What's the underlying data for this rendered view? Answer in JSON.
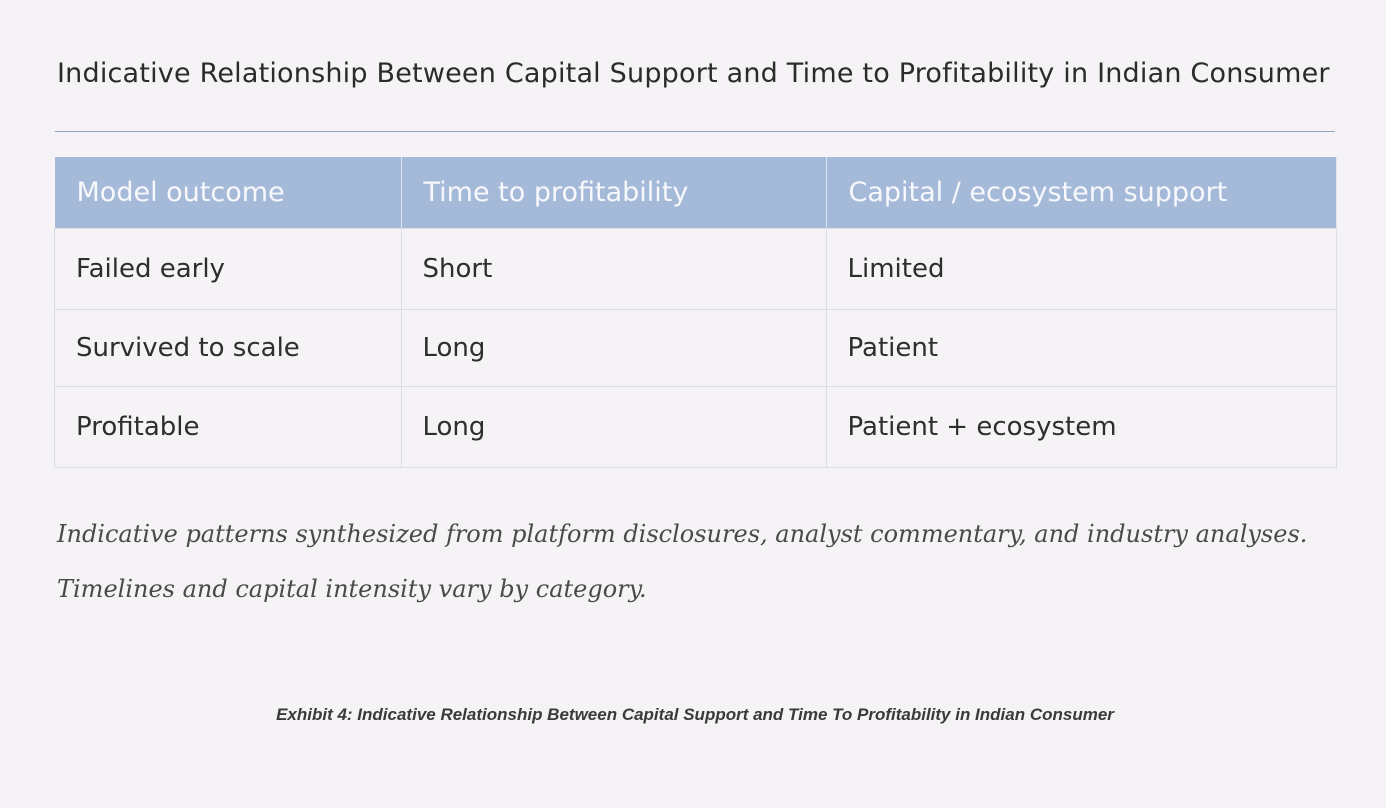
{
  "title": "Indicative Relationship Between Capital Support and Time to Profitability in Indian Consumer",
  "table": {
    "headers": [
      "Model outcome",
      "Time to profitability",
      "Capital / ecosystem support"
    ],
    "rows": [
      [
        "Failed early",
        "Short",
        "Limited"
      ],
      [
        "Survived to scale",
        "Long",
        "Patient"
      ],
      [
        "Profitable",
        "Long",
        "Patient + ecosystem"
      ]
    ]
  },
  "notes": [
    "Indicative patterns synthesized from platform disclosures, analyst commentary, and industry analyses.",
    "Timelines and capital intensity vary by category."
  ],
  "caption": "Exhibit 4: Indicative Relationship Between Capital Support and Time To Profitability in Indian Consumer",
  "colors": {
    "header_bg": "#a5b9d8",
    "rule": "#8fa3c2"
  }
}
